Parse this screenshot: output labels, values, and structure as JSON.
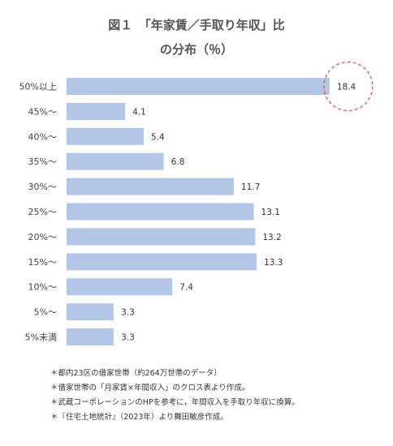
{
  "chart_data": {
    "type": "bar",
    "orientation": "horizontal",
    "title_line1": "図１　「年家賃／手取り年収」比",
    "title_line2": "の分布（％）",
    "categories": [
      "50%以上",
      "45%〜",
      "40%〜",
      "35%〜",
      "30%〜",
      "25%〜",
      "20%〜",
      "15%〜",
      "10%〜",
      "5%〜",
      "5%未満"
    ],
    "values": [
      18.4,
      4.1,
      5.4,
      6.8,
      11.7,
      13.1,
      13.2,
      13.3,
      7.4,
      3.3,
      3.3
    ],
    "value_labels": [
      "18.4",
      "4.1",
      "5.4",
      "6.8",
      "11.7",
      "13.1",
      "13.2",
      "13.3",
      "7.4",
      "3.3",
      "3.3"
    ],
    "highlight_index": 0,
    "bar_color": "#b4c6e7",
    "highlight_color": "#e8444a",
    "grid": false
  },
  "notes": [
    "＊都内23区の借家世帯（約264万世帯のデータ）",
    "＊借家世帯の「月家賃×年間収入」のクロス表より作成。",
    "＊武蔵コーポレーションのHPを参考に，年間収入を手取り年収に換算。",
    "＊『住宅土地統計』（2023年）より舞田敏彦作成。"
  ]
}
